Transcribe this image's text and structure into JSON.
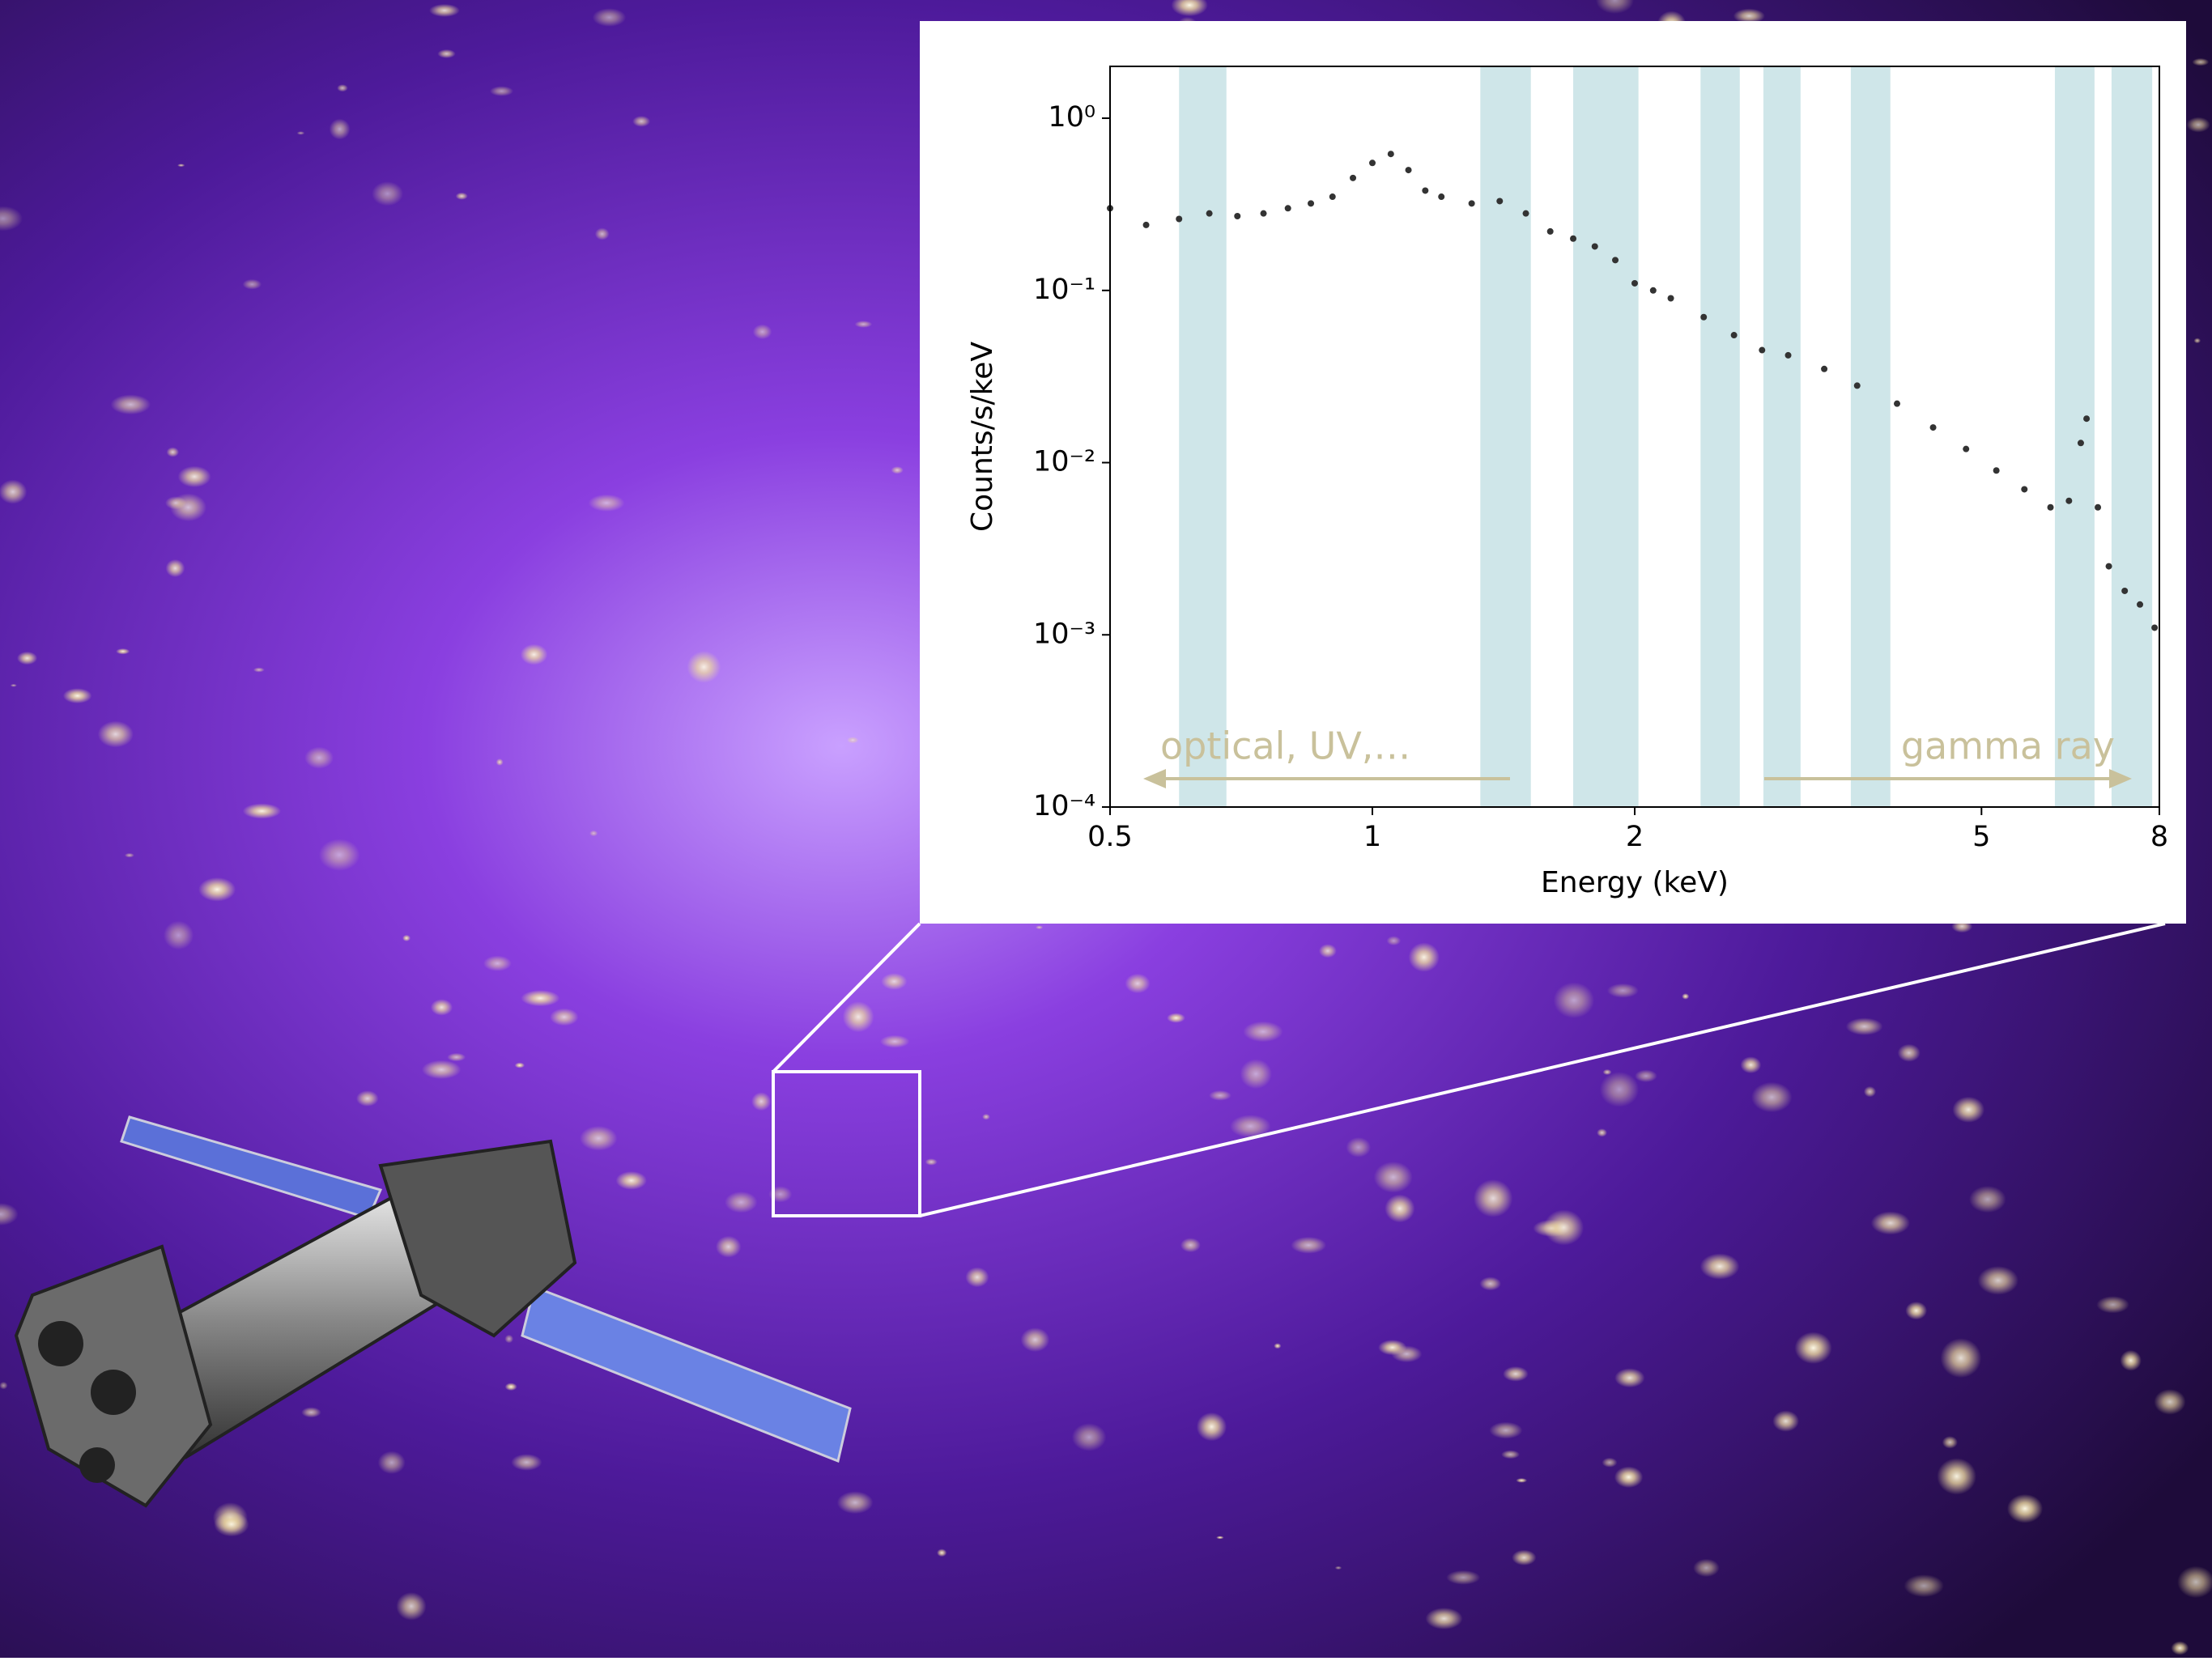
{
  "chart_data": {
    "type": "scatter",
    "x_label": "Energy (keV)",
    "y_label": "Counts/s/keV",
    "xscale": "log",
    "yscale": "log",
    "xlim": [
      0.5,
      8
    ],
    "ylim": [
      0.0001,
      2
    ],
    "xticks": [
      0.5,
      1,
      2,
      5,
      8
    ],
    "yticks": [
      {
        "value": 1,
        "label": "10⁰"
      },
      {
        "value": 0.1,
        "label": "10⁻¹"
      },
      {
        "value": 0.01,
        "label": "10⁻²"
      },
      {
        "value": 0.001,
        "label": "10⁻³"
      },
      {
        "value": 0.0001,
        "label": "10⁻⁴"
      }
    ],
    "band_color": "#cfe6e9",
    "bands": [
      [
        0.6,
        0.68
      ],
      [
        1.33,
        1.52
      ],
      [
        1.7,
        2.02
      ],
      [
        2.38,
        2.64
      ],
      [
        2.81,
        3.1
      ],
      [
        3.54,
        3.93
      ],
      [
        6.07,
        6.74
      ],
      [
        7.05,
        7.85
      ]
    ],
    "series": [
      {
        "color": "#333333",
        "x": [
          0.5,
          0.55,
          0.6,
          0.65,
          0.7,
          0.75,
          0.8,
          0.85,
          0.9,
          0.95,
          1.0,
          1.05,
          1.1,
          1.15,
          1.2,
          1.3,
          1.4,
          1.5,
          1.6,
          1.7,
          1.8,
          1.9,
          2.0,
          2.1,
          2.2,
          2.4,
          2.6,
          2.8,
          3.0,
          3.3,
          3.6,
          4.0,
          4.4,
          4.8,
          5.2,
          5.6,
          6.0,
          6.3,
          6.5,
          6.6,
          6.8,
          7.0,
          7.3,
          7.6,
          7.9
        ],
        "values": [
          0.3,
          0.24,
          0.26,
          0.28,
          0.27,
          0.28,
          0.3,
          0.32,
          0.35,
          0.45,
          0.55,
          0.62,
          0.5,
          0.38,
          0.35,
          0.32,
          0.33,
          0.28,
          0.22,
          0.2,
          0.18,
          0.15,
          0.11,
          0.1,
          0.09,
          0.07,
          0.055,
          0.045,
          0.042,
          0.035,
          0.028,
          0.022,
          0.016,
          0.012,
          0.009,
          0.007,
          0.0055,
          0.006,
          0.013,
          0.018,
          0.0055,
          0.0025,
          0.0018,
          0.0015,
          0.0011
        ]
      }
    ],
    "annotations": [
      "optical, UV,…",
      "gamma ray"
    ],
    "annotation_color": "#c9c19b"
  }
}
